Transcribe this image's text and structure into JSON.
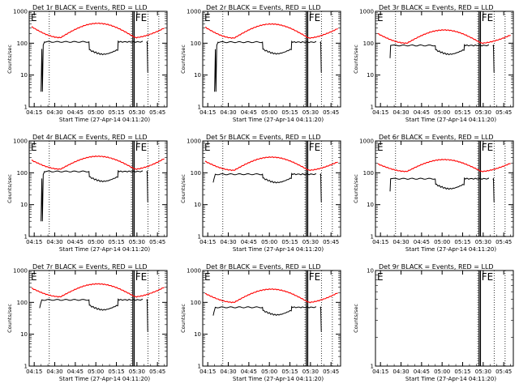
{
  "figure": {
    "xlabel": "Start Time (27-Apr-14 04:11:20)",
    "ylabel": "Counts/sec",
    "x_ticks": [
      "04:15",
      "04:30",
      "04:45",
      "05:00",
      "05:15",
      "05:30",
      "05:45"
    ],
    "y_ticks": [
      "1",
      "10",
      "100",
      "1000"
    ],
    "marker_e": "E",
    "marker_fe": "FE",
    "colors": {
      "events": "#000000",
      "lld": "#ff0000",
      "axes": "#000000"
    }
  },
  "chart_data": [
    {
      "type": "line",
      "title": "Det 1r BLACK = Events, RED = LLD",
      "has_data": true,
      "mode": "a",
      "ylim": [
        1,
        1000
      ],
      "yscale": "log",
      "dotted_x": [
        "04:26",
        "05:26",
        "05:38",
        "05:46"
      ],
      "solid_x": [
        "05:27",
        "05:28"
      ],
      "series": [
        {
          "name": "Events",
          "role": "events",
          "peak": 110,
          "dip": 50,
          "start": "04:20",
          "dip_start": "04:55",
          "dip_end": "05:16",
          "end": "05:34"
        },
        {
          "name": "LLD",
          "role": "lld",
          "high": 330,
          "low": 150,
          "mid": 420,
          "end_val": 300
        }
      ]
    },
    {
      "type": "line",
      "title": "Det 2r BLACK = Events, RED = LLD",
      "has_data": true,
      "mode": "a",
      "ylim": [
        1,
        1000
      ],
      "yscale": "log",
      "dotted_x": [
        "04:26",
        "05:26",
        "05:38",
        "05:46"
      ],
      "solid_x": [
        "05:27",
        "05:28"
      ],
      "series": [
        {
          "name": "Events",
          "role": "events",
          "peak": 108,
          "dip": 52,
          "start": "04:20",
          "dip_start": "04:55",
          "dip_end": "05:16",
          "end": "05:34"
        },
        {
          "name": "LLD",
          "role": "lld",
          "high": 320,
          "low": 145,
          "mid": 400,
          "end_val": 290
        }
      ]
    },
    {
      "type": "line",
      "title": "Det 3r BLACK = Events, RED = LLD",
      "has_data": true,
      "mode": "b",
      "ylim": [
        1,
        1000
      ],
      "yscale": "log",
      "dotted_x": [
        "04:26",
        "05:26",
        "05:38",
        "05:46"
      ],
      "solid_x": [
        "05:27",
        "05:28"
      ],
      "series": [
        {
          "name": "Events",
          "role": "events",
          "peak": 85,
          "dip": 50,
          "start": "04:22",
          "dip_start": "04:55",
          "dip_end": "05:16",
          "end": "05:34"
        },
        {
          "name": "LLD",
          "role": "lld",
          "high": 200,
          "low": 100,
          "mid": 260,
          "end_val": 180
        }
      ]
    },
    {
      "type": "line",
      "title": "Det 4r BLACK = Events, RED = LLD",
      "has_data": true,
      "mode": "a",
      "ylim": [
        1,
        1000
      ],
      "yscale": "log",
      "dotted_x": [
        "04:26",
        "05:26",
        "05:38",
        "05:46"
      ],
      "solid_x": [
        "05:27",
        "05:28"
      ],
      "series": [
        {
          "name": "Events",
          "role": "events",
          "peak": 110,
          "dip": 60,
          "start": "04:20",
          "dip_start": "04:55",
          "dip_end": "05:16",
          "end": "05:34"
        },
        {
          "name": "LLD",
          "role": "lld",
          "high": 250,
          "low": 130,
          "mid": 330,
          "end_val": 280
        }
      ]
    },
    {
      "type": "line",
      "title": "Det 5r BLACK = Events, RED = LLD",
      "has_data": true,
      "mode": "c",
      "ylim": [
        1,
        1000
      ],
      "yscale": "log",
      "dotted_x": [
        "04:26",
        "05:26",
        "05:38",
        "05:46"
      ],
      "solid_x": [
        "05:27",
        "05:28"
      ],
      "series": [
        {
          "name": "Events",
          "role": "events",
          "peak": 90,
          "dip": 55,
          "start": "04:19",
          "dip_start": "04:55",
          "dip_end": "05:16",
          "end": "05:34"
        },
        {
          "name": "LLD",
          "role": "lld",
          "high": 230,
          "low": 120,
          "mid": 310,
          "end_val": 220
        }
      ]
    },
    {
      "type": "line",
      "title": "Det 6r BLACK = Events, RED = LLD",
      "has_data": true,
      "mode": "b",
      "ylim": [
        1,
        1000
      ],
      "yscale": "log",
      "dotted_x": [
        "04:26",
        "05:26",
        "05:38",
        "05:46"
      ],
      "solid_x": [
        "05:27",
        "05:28"
      ],
      "series": [
        {
          "name": "Events",
          "role": "events",
          "peak": 65,
          "dip": 35,
          "start": "04:22",
          "dip_start": "04:55",
          "dip_end": "05:16",
          "end": "05:34"
        },
        {
          "name": "LLD",
          "role": "lld",
          "high": 190,
          "low": 110,
          "mid": 260,
          "end_val": 200
        }
      ]
    },
    {
      "type": "line",
      "title": "Det 7r BLACK = Events, RED = LLD",
      "has_data": true,
      "mode": "c",
      "ylim": [
        1,
        1000
      ],
      "yscale": "log",
      "dotted_x": [
        "04:26",
        "05:26",
        "05:38",
        "05:46"
      ],
      "solid_x": [
        "05:27",
        "05:28"
      ],
      "series": [
        {
          "name": "Events",
          "role": "events",
          "peak": 120,
          "dip": 65,
          "start": "04:19",
          "dip_start": "04:55",
          "dip_end": "05:16",
          "end": "05:34"
        },
        {
          "name": "LLD",
          "role": "lld",
          "high": 280,
          "low": 150,
          "mid": 380,
          "end_val": 300
        }
      ]
    },
    {
      "type": "line",
      "title": "Det 8r BLACK = Events, RED = LLD",
      "has_data": true,
      "mode": "c",
      "ylim": [
        1,
        1000
      ],
      "yscale": "log",
      "dotted_x": [
        "04:26",
        "05:26",
        "05:38",
        "05:46"
      ],
      "solid_x": [
        "05:27",
        "05:28"
      ],
      "series": [
        {
          "name": "Events",
          "role": "events",
          "peak": 70,
          "dip": 45,
          "start": "04:19",
          "dip_start": "04:55",
          "dip_end": "05:16",
          "end": "05:34"
        },
        {
          "name": "LLD",
          "role": "lld",
          "high": 190,
          "low": 100,
          "mid": 260,
          "end_val": 200
        }
      ]
    },
    {
      "type": "line",
      "title": "Det 9r BLACK = Events, RED = LLD",
      "has_data": false,
      "mode": "none",
      "ylim": [
        1,
        10
      ],
      "yscale": "log",
      "dotted_x": [
        "05:26",
        "05:38",
        "05:46"
      ],
      "solid_x": [
        "05:27",
        "05:28"
      ],
      "series": []
    }
  ]
}
